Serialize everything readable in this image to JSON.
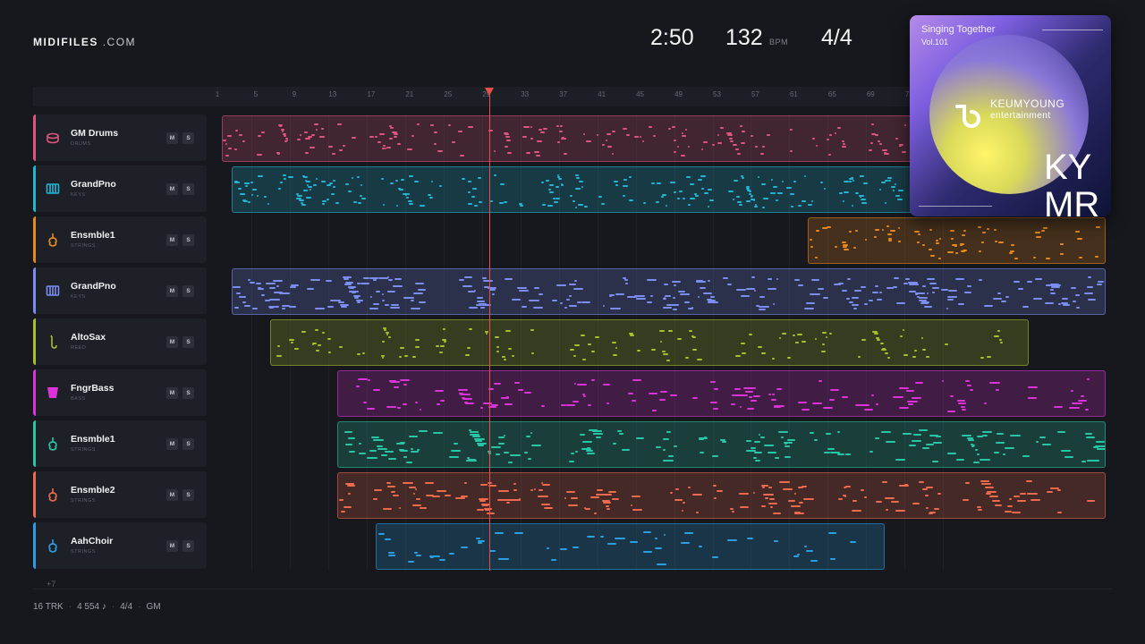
{
  "brand": {
    "name": "MIDIFILES",
    "suffix": ".COM"
  },
  "transport": {
    "time": "2:50",
    "bpm": "132",
    "bpm_unit": "BPM",
    "signature": "4/4"
  },
  "ruler": {
    "bars": [
      "1",
      "5",
      "9",
      "13",
      "17",
      "21",
      "25",
      "29",
      "33",
      "37",
      "41",
      "45",
      "49",
      "53",
      "57",
      "61",
      "65",
      "69",
      "73"
    ]
  },
  "playhead_bar": 29.3,
  "tracks": [
    {
      "name": "GM Drums",
      "category": "DRUMS",
      "icon": "drum-icon",
      "color": "#e0557f",
      "m": "M",
      "s": "S"
    },
    {
      "name": "GrandPno",
      "category": "KEYS",
      "icon": "piano-icon",
      "color": "#22b6d6",
      "m": "M",
      "s": "S"
    },
    {
      "name": "Ensmble1",
      "category": "STRINGS",
      "icon": "violin-icon",
      "color": "#e8891a",
      "m": "M",
      "s": "S"
    },
    {
      "name": "GrandPno",
      "category": "KEYS",
      "icon": "piano-icon",
      "color": "#7b8df0",
      "m": "M",
      "s": "S"
    },
    {
      "name": "AltoSax",
      "category": "REED",
      "icon": "saxophone-icon",
      "color": "#a7c12b",
      "m": "M",
      "s": "S"
    },
    {
      "name": "FngrBass",
      "category": "BASS",
      "icon": "amp-icon",
      "color": "#dc33d8",
      "m": "M",
      "s": "S"
    },
    {
      "name": "Ensmble1",
      "category": "STRINGS",
      "icon": "violin-icon",
      "color": "#27c7a6",
      "m": "M",
      "s": "S"
    },
    {
      "name": "Ensmble2",
      "category": "STRINGS",
      "icon": "violin-icon",
      "color": "#ee6a4f",
      "m": "M",
      "s": "S"
    },
    {
      "name": "AahChoir",
      "category": "STRINGS",
      "icon": "violin-icon",
      "color": "#2a9ee0",
      "m": "M",
      "s": "S"
    }
  ],
  "clips": [
    {
      "track": 0,
      "start_bar": 1,
      "end_bar": 73
    },
    {
      "track": 1,
      "start_bar": 2,
      "end_bar": 73
    },
    {
      "track": 2,
      "start_bar": 62,
      "end_bar": 93
    },
    {
      "track": 3,
      "start_bar": 2,
      "end_bar": 93
    },
    {
      "track": 4,
      "start_bar": 6,
      "end_bar": 85
    },
    {
      "track": 5,
      "start_bar": 13,
      "end_bar": 93
    },
    {
      "track": 6,
      "start_bar": 13,
      "end_bar": 93
    },
    {
      "track": 7,
      "start_bar": 13,
      "end_bar": 93
    },
    {
      "track": 8,
      "start_bar": 17,
      "end_bar": 70
    }
  ],
  "more_tracks": "+7",
  "status": {
    "tracks": "16 TRK",
    "notes": "4 554 ♪",
    "signature": "4/4",
    "standard": "GM"
  },
  "album": {
    "title": "Singing Together",
    "volume": "Vol.101",
    "label_line1": "KEUMYOUNG",
    "label_line2": "entertainment",
    "big1": "KY",
    "big2": "MR"
  }
}
